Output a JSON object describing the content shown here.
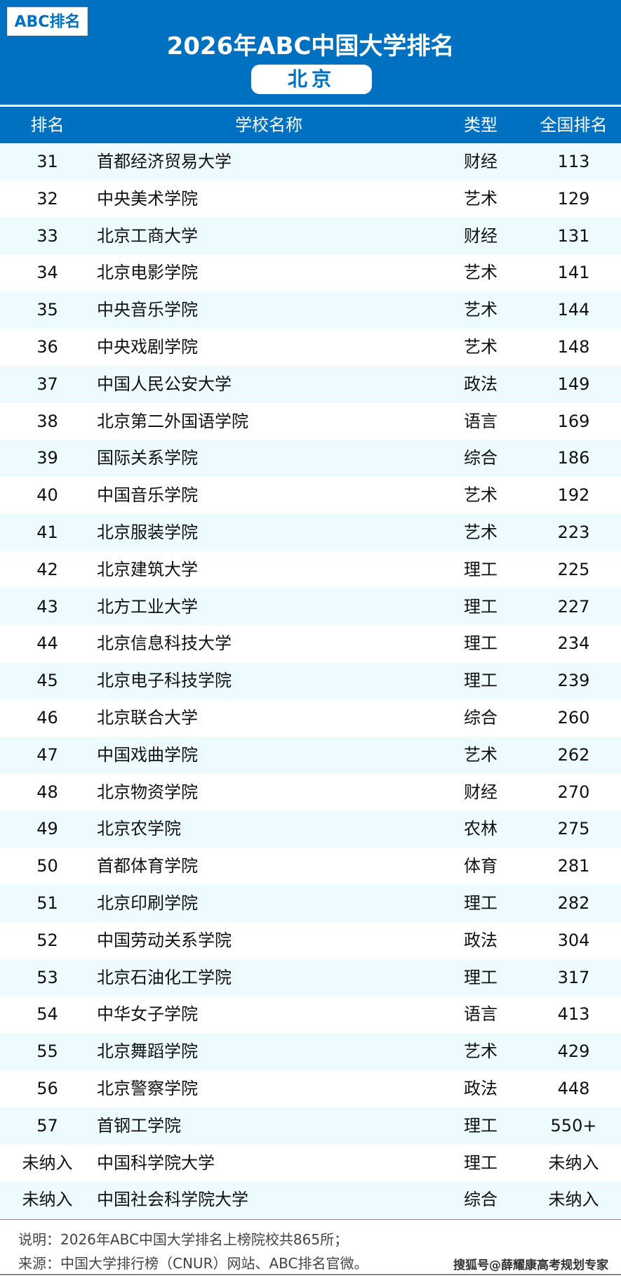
{
  "logo": "ABC排名",
  "title": "2026年ABC中国大学排名",
  "region": "北京",
  "columns": [
    "排名",
    "学校名称",
    "类型",
    "全国排名"
  ],
  "rows": [
    [
      "31",
      "首都经济贸易大学",
      "财经",
      "113"
    ],
    [
      "32",
      "中央美术学院",
      "艺术",
      "129"
    ],
    [
      "33",
      "北京工商大学",
      "财经",
      "131"
    ],
    [
      "34",
      "北京电影学院",
      "艺术",
      "141"
    ],
    [
      "35",
      "中央音乐学院",
      "艺术",
      "144"
    ],
    [
      "36",
      "中央戏剧学院",
      "艺术",
      "148"
    ],
    [
      "37",
      "中国人民公安大学",
      "政法",
      "149"
    ],
    [
      "38",
      "北京第二外国语学院",
      "语言",
      "169"
    ],
    [
      "39",
      "国际关系学院",
      "综合",
      "186"
    ],
    [
      "40",
      "中国音乐学院",
      "艺术",
      "192"
    ],
    [
      "41",
      "北京服装学院",
      "艺术",
      "223"
    ],
    [
      "42",
      "北京建筑大学",
      "理工",
      "225"
    ],
    [
      "43",
      "北方工业大学",
      "理工",
      "227"
    ],
    [
      "44",
      "北京信息科技大学",
      "理工",
      "234"
    ],
    [
      "45",
      "北京电子科技学院",
      "理工",
      "239"
    ],
    [
      "46",
      "北京联合大学",
      "综合",
      "260"
    ],
    [
      "47",
      "中国戏曲学院",
      "艺术",
      "262"
    ],
    [
      "48",
      "北京物资学院",
      "财经",
      "270"
    ],
    [
      "49",
      "北京农学院",
      "农林",
      "275"
    ],
    [
      "50",
      "首都体育学院",
      "体育",
      "281"
    ],
    [
      "51",
      "北京印刷学院",
      "理工",
      "282"
    ],
    [
      "52",
      "中国劳动关系学院",
      "政法",
      "304"
    ],
    [
      "53",
      "北京石油化工学院",
      "理工",
      "317"
    ],
    [
      "54",
      "中华女子学院",
      "语言",
      "413"
    ],
    [
      "55",
      "北京舞蹈学院",
      "艺术",
      "429"
    ],
    [
      "56",
      "北京警察学院",
      "政法",
      "448"
    ],
    [
      "57",
      "首钢工学院",
      "理工",
      "550+"
    ],
    [
      "未纳入",
      "中国科学院大学",
      "理工",
      "未纳入"
    ],
    [
      "未纳入",
      "中国社会科学院大学",
      "综合",
      "未纳入"
    ]
  ],
  "footer": {
    "note": "说明：2026年ABC中国大学排名上榜院校共865所；",
    "source": "来源：中国大学排行榜（CNUR）网站、ABC排名官微。",
    "watermark": "搜狐号@薛耀康高考规划专家"
  },
  "colors": {
    "brand": "#0070c0",
    "stripe": "#edfbfe"
  }
}
